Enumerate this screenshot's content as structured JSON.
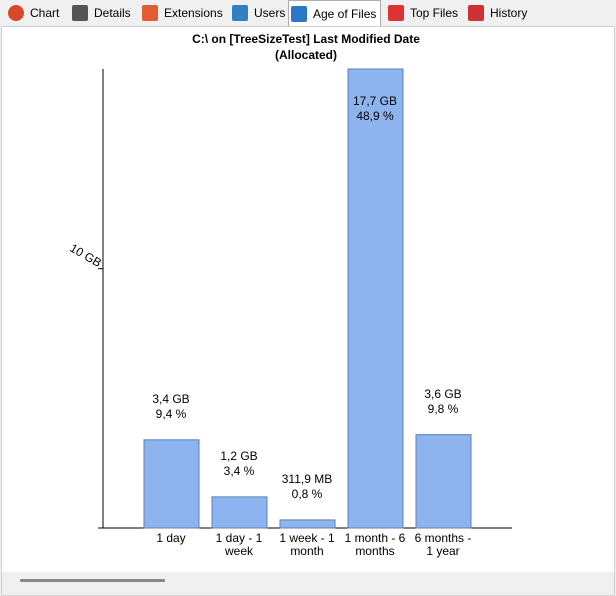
{
  "tabs": [
    "Chart",
    "Details",
    "Extensions",
    "Users",
    "Age of Files",
    "Top Files",
    "History"
  ],
  "active_tab": 4,
  "chart_data": {
    "type": "bar",
    "title": "C:\\  on  [TreeSizeTest] Last Modified Date",
    "subtitle": "(Allocated)",
    "categories": [
      "1 day",
      "1 day - 1 week",
      "1 week - 1 month",
      "1 month - 6 months",
      "6 months - 1 year"
    ],
    "values": [
      3.4,
      1.2,
      0.3119,
      17.7,
      3.6
    ],
    "value_labels": [
      "3,4 GB",
      "1,2 GB",
      "311,9 MB",
      "17,7 GB",
      "3,6 GB"
    ],
    "percents": [
      9.4,
      3.4,
      0.8,
      48.9,
      9.8
    ],
    "percent_labels": [
      "9,4 %",
      "3,4 %",
      "0,8 %",
      "48,9 %",
      "9,8 %"
    ],
    "color": "#8db4ee",
    "ylim": [
      0,
      17.7
    ],
    "yticks": [
      {
        "value": 10,
        "label": "10 GB"
      }
    ]
  }
}
